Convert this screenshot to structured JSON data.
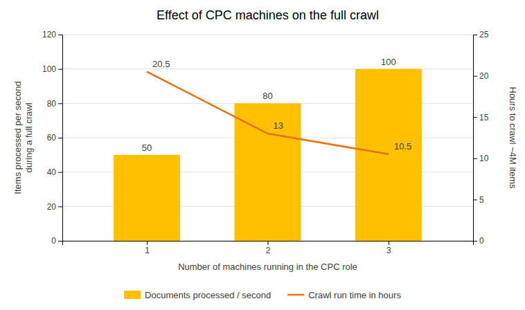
{
  "chart_data": {
    "type": "bar",
    "title": "Effect of CPC machines on the full crawl",
    "xlabel": "Number  of machines running in the CPC role",
    "ylabel": "Items processed per second\nduring a full crawl",
    "y2label": "Hours to crawl ~4M items",
    "x": [
      1,
      2,
      3
    ],
    "xlim": [
      0.3,
      3.7
    ],
    "xticks": [
      1,
      2,
      3
    ],
    "ylim": [
      0,
      120
    ],
    "yticks": [
      0,
      20,
      40,
      60,
      80,
      100,
      120
    ],
    "y2lim": [
      0,
      25
    ],
    "y2ticks": [
      0,
      5,
      10,
      15,
      20,
      25
    ],
    "grid": true,
    "data_labels": true,
    "legend": "bottom",
    "series": [
      {
        "name": "Documents processed / second",
        "type": "bar",
        "color": "#FFC000",
        "values": [
          50,
          80,
          100
        ]
      },
      {
        "name": "Crawl run time in hours",
        "type": "line",
        "color": "#E8700A",
        "axis": "y2",
        "values": [
          20.5,
          13,
          10.5
        ]
      }
    ]
  }
}
